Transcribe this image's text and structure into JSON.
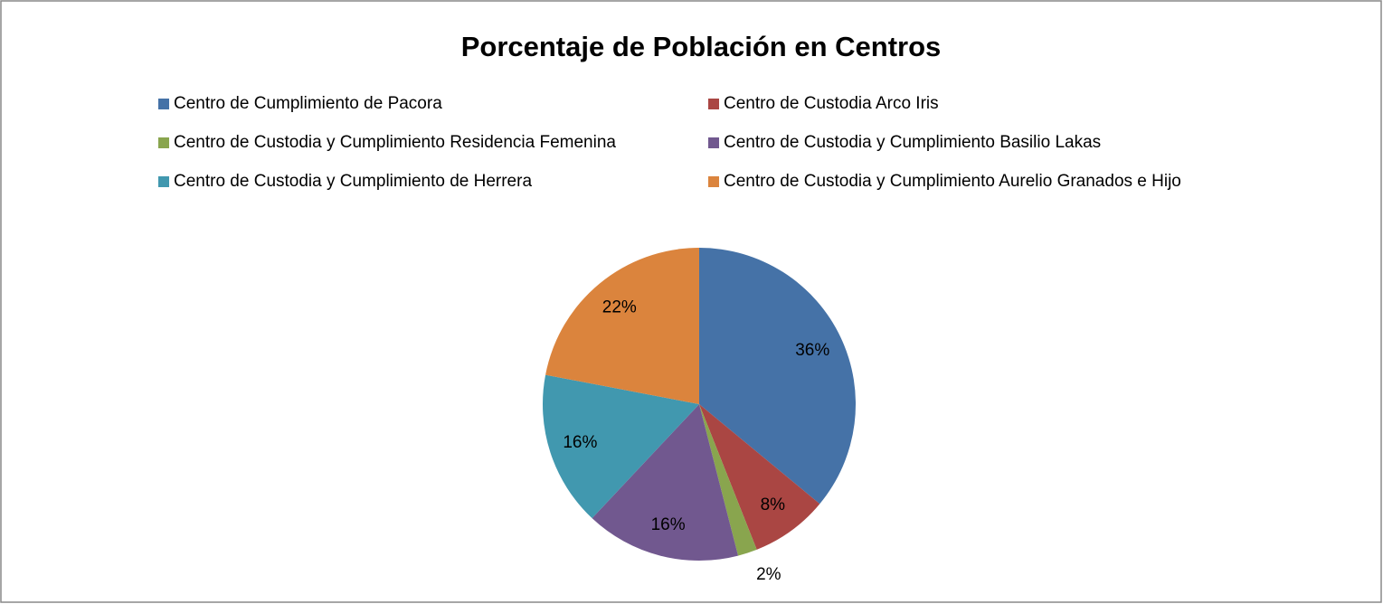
{
  "chart_data": {
    "type": "pie",
    "title": "Porcentaje de Población en Centros",
    "categories": [
      "Centro de Cumplimiento de Pacora",
      "Centro de Custodia Arco Iris",
      "Centro de Custodia y Cumplimiento Residencia Femenina",
      "Centro de Custodia y Cumplimiento Basilio Lakas",
      "Centro de Custodia y Cumplimiento de Herrera",
      "Centro de Custodia y Cumplimiento Aurelio Granados e Hijo"
    ],
    "values": [
      36,
      8,
      2,
      16,
      16,
      22
    ],
    "value_labels": [
      "36%",
      "8%",
      "2%",
      "16%",
      "16%",
      "22%"
    ],
    "colors": [
      "#4572a7",
      "#aa4643",
      "#89a54e",
      "#71588f",
      "#4198af",
      "#db843d"
    ],
    "legend": "top"
  }
}
